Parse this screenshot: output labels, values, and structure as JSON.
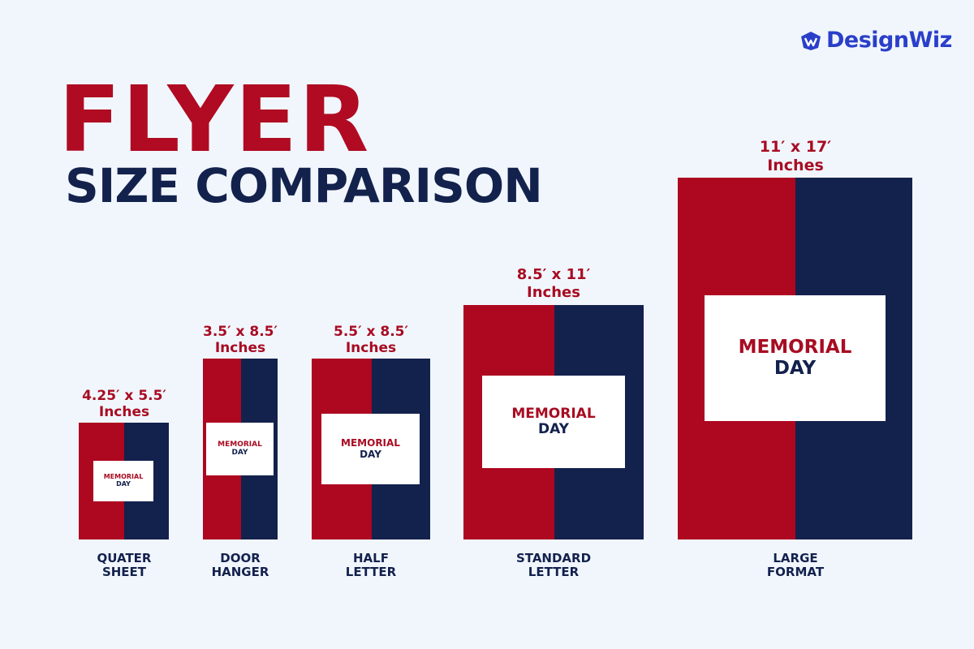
{
  "brand": {
    "name": "DesignWiz",
    "logo_icon": "designwiz-logo-icon",
    "color": "#2a3fc9"
  },
  "title": {
    "main": "FLYER",
    "sub": "SIZE COMPARISON"
  },
  "colors": {
    "red": "#ae0720",
    "navy": "#13214d",
    "background": "#f1f6fd"
  },
  "flyers": [
    {
      "size_line1": "4.25′ x 5.5′",
      "size_line2": "Inches",
      "card_line1": "MEMORIAL",
      "card_line2": "DAY",
      "caption_line1": "QUATER",
      "caption_line2": "SHEET"
    },
    {
      "size_line1": "3.5′ x 8.5′",
      "size_line2": "Inches",
      "card_line1": "MEMORIAL",
      "card_line2": "DAY",
      "caption_line1": "DOOR",
      "caption_line2": "HANGER"
    },
    {
      "size_line1": "5.5′ x 8.5′",
      "size_line2": "Inches",
      "card_line1": "MEMORIAL",
      "card_line2": "DAY",
      "caption_line1": "HALF",
      "caption_line2": "LETTER"
    },
    {
      "size_line1": "8.5′ x 11′",
      "size_line2": "Inches",
      "card_line1": "MEMORIAL",
      "card_line2": "DAY",
      "caption_line1": "STANDARD",
      "caption_line2": "LETTER"
    },
    {
      "size_line1": "11′ x 17′",
      "size_line2": "Inches",
      "card_line1": "MEMORIAL",
      "card_line2": "DAY",
      "caption_line1": "LARGE",
      "caption_line2": "FORMAT"
    }
  ]
}
